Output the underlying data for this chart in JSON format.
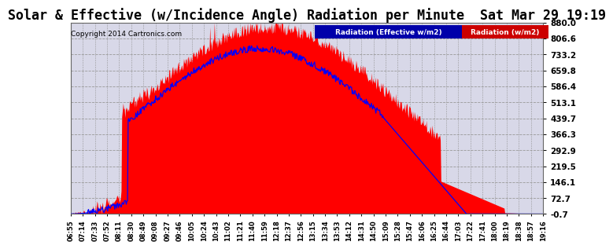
{
  "title": "Solar & Effective (w/Incidence Angle) Radiation per Minute  Sat Mar 29 19:19",
  "copyright": "Copyright 2014 Cartronics.com",
  "legend_blue": "Radiation (Effective w/m2)",
  "legend_red": "Radiation (w/m2)",
  "ylim": [
    -0.7,
    880.0
  ],
  "yticks": [
    -0.7,
    72.7,
    146.1,
    219.5,
    292.9,
    366.3,
    439.7,
    513.1,
    586.4,
    659.8,
    733.2,
    806.6,
    880.0
  ],
  "background_color": "#ffffff",
  "plot_bg_color": "#d8d8e8",
  "grid_color": "#aaaaaa",
  "red_color": "#ff0000",
  "blue_color": "#0000ff",
  "title_fontsize": 12,
  "x_tick_labels": [
    "06:55",
    "07:14",
    "07:33",
    "07:52",
    "08:11",
    "08:30",
    "08:49",
    "09:08",
    "09:27",
    "09:46",
    "10:05",
    "10:24",
    "10:43",
    "11:02",
    "11:21",
    "11:40",
    "11:59",
    "12:18",
    "12:37",
    "12:56",
    "13:15",
    "13:34",
    "13:53",
    "14:12",
    "14:31",
    "14:50",
    "15:09",
    "15:28",
    "15:47",
    "16:06",
    "16:25",
    "16:44",
    "17:03",
    "17:22",
    "17:41",
    "18:00",
    "18:19",
    "18:38",
    "18:57",
    "19:16"
  ],
  "n_ticks": 40
}
